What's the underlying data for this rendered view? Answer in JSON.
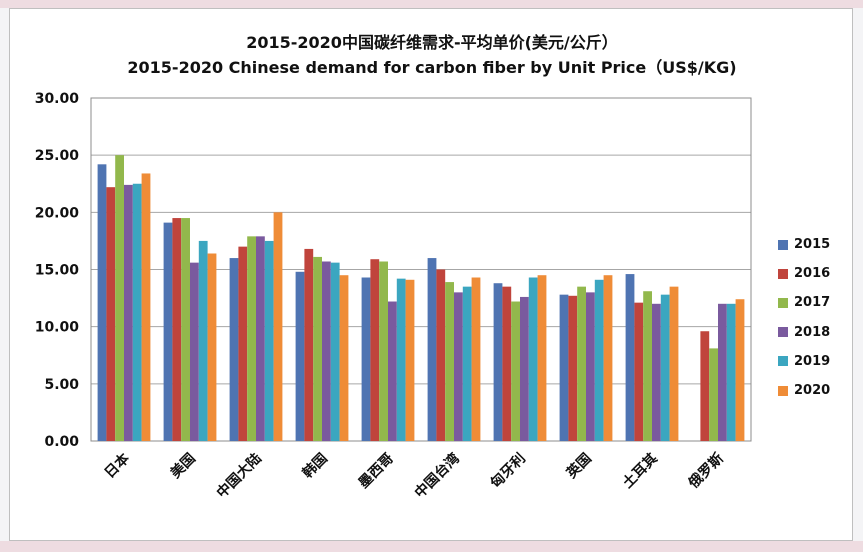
{
  "title_cn": "2015-2020中国碳纤维需求-平均单价(美元/公斤）",
  "title_en": "2015-2020 Chinese demand for carbon fiber by Unit Price（US$/KG)",
  "colors": {
    "s2015": "#4f74b2",
    "s2016": "#c0443c",
    "s2017": "#92b84c",
    "s2018": "#7a5a9e",
    "s2019": "#3ba6c0",
    "s2020": "#ef8c37"
  },
  "chart_data": {
    "type": "bar",
    "title": "2015-2020 Chinese demand for carbon fiber by Unit Price（US$/KG)",
    "ylim": [
      0,
      30
    ],
    "yticks": [
      "0.00",
      "5.00",
      "10.00",
      "15.00",
      "20.00",
      "25.00",
      "30.00"
    ],
    "grid": true,
    "legend_position": "right",
    "categories": [
      "日本",
      "美国",
      "中国大陆",
      "韩国",
      "墨西哥",
      "中国台湾",
      "匈牙利",
      "英国",
      "土耳其",
      "俄罗斯"
    ],
    "series": [
      {
        "name": "2015",
        "values": [
          24.2,
          19.1,
          16.0,
          14.8,
          14.3,
          16.0,
          13.8,
          12.8,
          14.6,
          0
        ]
      },
      {
        "name": "2016",
        "values": [
          22.2,
          19.5,
          17.0,
          16.8,
          15.9,
          15.0,
          13.5,
          12.7,
          12.1,
          9.6
        ]
      },
      {
        "name": "2017",
        "values": [
          25.0,
          19.5,
          17.9,
          16.1,
          15.7,
          13.9,
          12.2,
          13.5,
          13.1,
          8.1
        ]
      },
      {
        "name": "2018",
        "values": [
          22.4,
          15.6,
          17.9,
          15.7,
          12.2,
          13.0,
          12.6,
          13.0,
          12.0,
          12.0
        ]
      },
      {
        "name": "2019",
        "values": [
          22.5,
          17.5,
          17.5,
          15.6,
          14.2,
          13.5,
          14.3,
          14.1,
          12.8,
          12.0
        ]
      },
      {
        "name": "2020",
        "values": [
          23.4,
          16.4,
          20.0,
          14.5,
          14.1,
          14.3,
          14.5,
          14.5,
          13.5,
          12.4
        ]
      }
    ]
  }
}
